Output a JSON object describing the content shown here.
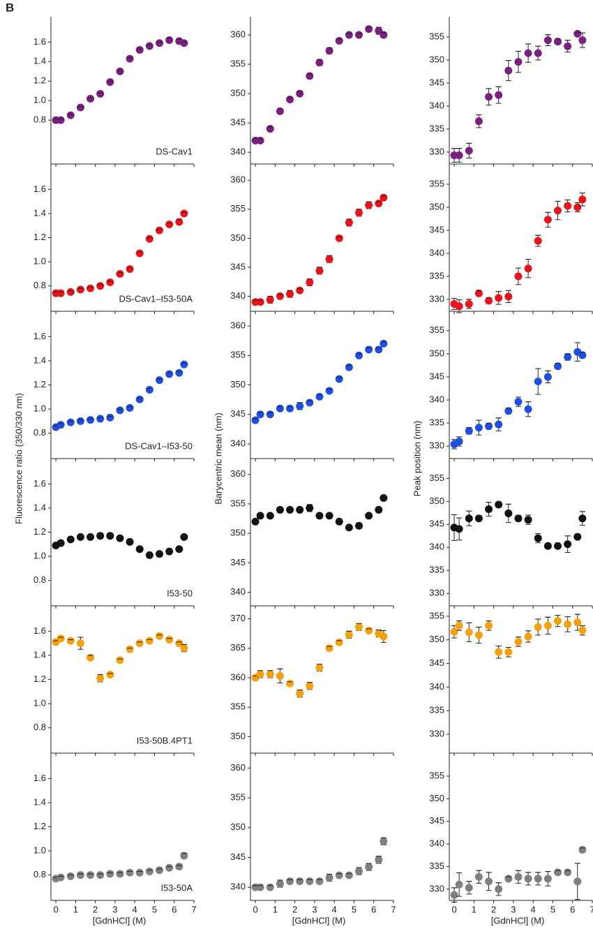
{
  "panel_label": "B",
  "chart_data": [
    {
      "type": "scatter",
      "label": "DS-Cav1",
      "ylabel": "Fluorescence ratio (350/330 nm)",
      "color": "#7b1f80",
      "x": [
        0,
        0.25,
        0.75,
        1.25,
        1.75,
        2.25,
        2.75,
        3.25,
        3.75,
        4.25,
        4.75,
        5.25,
        5.75,
        6.25,
        6.5
      ],
      "values": [
        0.8,
        0.8,
        0.85,
        0.93,
        1.02,
        1.07,
        1.19,
        1.3,
        1.43,
        1.52,
        1.56,
        1.59,
        1.62,
        1.61,
        1.59
      ],
      "errors": [
        0.01,
        0.01,
        0.01,
        0.01,
        0.01,
        0.01,
        0.01,
        0.01,
        0.01,
        0.01,
        0.01,
        0.01,
        0.02,
        0.02,
        0.01
      ],
      "xlim": [
        -0.25,
        7
      ],
      "xticks": [
        0,
        1,
        2,
        3,
        4,
        5,
        6,
        7
      ],
      "ylim": [
        0.35,
        1.86
      ],
      "yticks": [
        0.8,
        {
          "value": 1,
          "label": "1.0"
        },
        1.2,
        1.4,
        1.6
      ]
    },
    {
      "type": "scatter",
      "ylabel": "Barycentric mean (nm)",
      "color": "#7b1f80",
      "x": [
        0,
        0.25,
        0.75,
        1.25,
        1.75,
        2.25,
        2.75,
        3.25,
        3.75,
        4.25,
        4.75,
        5.25,
        5.75,
        6.25,
        6.5
      ],
      "values": [
        342,
        342,
        344,
        347,
        349,
        350,
        353,
        355.3,
        357.3,
        359,
        360,
        360,
        361,
        360.7,
        360
      ],
      "errors": [
        0.3,
        0.3,
        0.3,
        0.3,
        0.3,
        0.3,
        0.3,
        0.5,
        0.5,
        0.3,
        0.3,
        0.3,
        0.3,
        0.6,
        0.4
      ],
      "xlim": [
        -0.25,
        7
      ],
      "xticks": [
        0,
        1,
        2,
        3,
        4,
        5,
        6,
        7
      ],
      "ylim": [
        338,
        363.1
      ],
      "yticks": [
        340,
        345,
        350,
        355,
        360
      ]
    },
    {
      "type": "scatter",
      "ylabel": "Peak position (nm)",
      "color": "#7b1f80",
      "x": [
        0,
        0.25,
        0.75,
        1.25,
        1.75,
        2.25,
        2.75,
        3.25,
        3.75,
        4.25,
        4.75,
        5.25,
        5.75,
        6.25,
        6.5
      ],
      "values": [
        329.3,
        329.3,
        330.3,
        336.7,
        342,
        342.4,
        347.7,
        349.6,
        351.5,
        351.5,
        354.3,
        354,
        353,
        355.7,
        354.3
      ],
      "errors": [
        1.5,
        1.5,
        1.6,
        1.4,
        1.8,
        1.8,
        2.2,
        2.3,
        2,
        1.5,
        1.2,
        0.6,
        1.3,
        0.3,
        1.6
      ],
      "xlim": [
        -0.25,
        7
      ],
      "xticks": [
        0,
        1,
        2,
        3,
        4,
        5,
        6,
        7
      ],
      "ylim": [
        327.4,
        359.4
      ],
      "yticks": [
        330,
        335,
        340,
        345,
        350,
        355
      ]
    },
    {
      "type": "scatter",
      "label": "DS-Cav1–I53-50A",
      "color": "#e8131b",
      "x": [
        0,
        0.25,
        0.75,
        1.25,
        1.75,
        2.25,
        2.75,
        3.25,
        3.75,
        4.25,
        4.75,
        5.25,
        5.75,
        6.25,
        6.5
      ],
      "values": [
        0.74,
        0.74,
        0.75,
        0.77,
        0.78,
        0.8,
        0.83,
        0.9,
        0.94,
        1.07,
        1.19,
        1.26,
        1.31,
        1.33,
        1.4
      ],
      "errors": [
        0.01,
        0.01,
        0.01,
        0.01,
        0.01,
        0.01,
        0.01,
        0.01,
        0.01,
        0.01,
        0.01,
        0.01,
        0.01,
        0.02,
        0.01
      ],
      "xlim": [
        -0.25,
        7
      ],
      "xticks": [
        0,
        1,
        2,
        3,
        4,
        5,
        6,
        7
      ],
      "ylim": [
        0.59,
        1.81
      ],
      "yticks": [
        0.8,
        {
          "value": 1,
          "label": "1.0"
        },
        1.2,
        1.4,
        1.6
      ]
    },
    {
      "type": "scatter",
      "color": "#e8131b",
      "x": [
        0,
        0.25,
        0.75,
        1.25,
        1.75,
        2.25,
        2.75,
        3.25,
        3.75,
        4.25,
        4.75,
        5.25,
        5.75,
        6.25,
        6.5
      ],
      "values": [
        339,
        339,
        339.4,
        340,
        340.4,
        341,
        342.4,
        344.4,
        346.4,
        350,
        352.7,
        354.4,
        355.7,
        356,
        357
      ],
      "errors": [
        0.3,
        0.3,
        0.6,
        0.3,
        0.6,
        0.3,
        0.6,
        0.6,
        0.6,
        0.2,
        0.6,
        0.6,
        0.6,
        0.3,
        0.3
      ],
      "xlim": [
        -0.25,
        7
      ],
      "xticks": [
        0,
        1,
        2,
        3,
        4,
        5,
        6,
        7
      ],
      "ylim": [
        337.4,
        362.8
      ],
      "yticks": [
        340,
        345,
        350,
        355,
        360
      ]
    },
    {
      "type": "scatter",
      "color": "#e8131b",
      "x": [
        0,
        0.25,
        0.75,
        1.25,
        1.75,
        2.25,
        2.75,
        3.25,
        3.75,
        4.25,
        4.75,
        5.25,
        5.75,
        6.25,
        6.5
      ],
      "values": [
        329,
        328.5,
        329,
        331.3,
        329.7,
        330.3,
        330.6,
        335,
        336.7,
        342.7,
        347.3,
        349.3,
        350.3,
        350,
        351.7
      ],
      "errors": [
        1.2,
        1.4,
        1,
        0.6,
        0.6,
        1.4,
        1.3,
        1.8,
        2,
        1.2,
        1.6,
        2,
        1.3,
        1,
        1.4
      ],
      "xlim": [
        -0.25,
        7
      ],
      "xticks": [
        0,
        1,
        2,
        3,
        4,
        5,
        6,
        7
      ],
      "ylim": [
        327.4,
        359.4
      ],
      "yticks": [
        330,
        335,
        340,
        345,
        350,
        355
      ]
    },
    {
      "type": "scatter",
      "label": "DS-Cav1–I53-50",
      "color": "#1f4fe0",
      "x": [
        0,
        0.25,
        0.75,
        1.25,
        1.75,
        2.25,
        2.75,
        3.25,
        3.75,
        4.25,
        4.75,
        5.25,
        5.75,
        6.25,
        6.5
      ],
      "values": [
        0.85,
        0.87,
        0.89,
        0.9,
        0.91,
        0.92,
        0.93,
        0.99,
        1.01,
        1.08,
        1.16,
        1.24,
        1.29,
        1.3,
        1.37
      ],
      "errors": [
        0.01,
        0.01,
        0.01,
        0.01,
        0.01,
        0.01,
        0.01,
        0.01,
        0.01,
        0.01,
        0.01,
        0.01,
        0.01,
        0.01,
        0.01
      ],
      "xlim": [
        -0.25,
        7
      ],
      "xticks": [
        0,
        1,
        2,
        3,
        4,
        5,
        6,
        7
      ],
      "ylim": [
        0.59,
        1.81
      ],
      "yticks": [
        0.8,
        {
          "value": 1,
          "label": "1.0"
        },
        1.2,
        1.4,
        1.6
      ]
    },
    {
      "type": "scatter",
      "color": "#1f4fe0",
      "x": [
        0,
        0.25,
        0.75,
        1.25,
        1.75,
        2.25,
        2.75,
        3.25,
        3.75,
        4.25,
        4.75,
        5.25,
        5.75,
        6.25,
        6.5
      ],
      "values": [
        344,
        345,
        345,
        346,
        346,
        346.4,
        347,
        348,
        349,
        351,
        353,
        355,
        356,
        356,
        357
      ],
      "errors": [
        0.3,
        0.3,
        0.3,
        0.3,
        0.3,
        0.6,
        0.3,
        0.3,
        0.3,
        0.3,
        0.3,
        0.3,
        0.3,
        0.3,
        0.3
      ],
      "xlim": [
        -0.25,
        7
      ],
      "xticks": [
        0,
        1,
        2,
        3,
        4,
        5,
        6,
        7
      ],
      "ylim": [
        337.5,
        362.5
      ],
      "yticks": [
        340,
        345,
        350,
        355,
        360
      ]
    },
    {
      "type": "scatter",
      "color": "#1f4fe0",
      "x": [
        0,
        0.25,
        0.75,
        1.25,
        1.75,
        2.25,
        2.75,
        3.25,
        3.75,
        4.25,
        4.75,
        5.25,
        5.75,
        6.25,
        6.5
      ],
      "values": [
        330.4,
        331,
        333.3,
        334,
        334.3,
        334.7,
        337.6,
        339.6,
        338,
        344,
        345,
        347.3,
        349.3,
        350.4,
        349.7
      ],
      "errors": [
        1,
        1,
        0.7,
        1.6,
        0.6,
        1.4,
        0.6,
        1,
        1.6,
        2.8,
        1.3,
        0.6,
        0.7,
        2,
        0.6
      ],
      "xlim": [
        -0.25,
        7
      ],
      "xticks": [
        0,
        1,
        2,
        3,
        4,
        5,
        6,
        7
      ],
      "ylim": [
        327.3,
        359.2
      ],
      "yticks": [
        330,
        335,
        340,
        345,
        350,
        355
      ]
    },
    {
      "type": "scatter",
      "label": "I53-50",
      "color": "#111111",
      "x": [
        0,
        0.25,
        0.75,
        1.25,
        1.75,
        2.25,
        2.75,
        3.25,
        3.75,
        4.25,
        4.75,
        5.25,
        5.75,
        6.25,
        6.5
      ],
      "values": [
        1.09,
        1.11,
        1.14,
        1.16,
        1.16,
        1.17,
        1.17,
        1.15,
        1.12,
        1.06,
        1.01,
        1.02,
        1.04,
        1.06,
        1.16
      ],
      "errors": [
        0.01,
        0.01,
        0.01,
        0.01,
        0.01,
        0.01,
        0.01,
        0.01,
        0.01,
        0.01,
        0.01,
        0.01,
        0.01,
        0.01,
        0.01
      ],
      "xlim": [
        -0.25,
        7
      ],
      "xticks": [
        0,
        1,
        2,
        3,
        4,
        5,
        6,
        7
      ],
      "ylim": [
        0.59,
        1.81
      ],
      "yticks": [
        0.8,
        {
          "value": 1,
          "label": "1.0"
        },
        1.2,
        1.4,
        1.6
      ]
    },
    {
      "type": "scatter",
      "color": "#111111",
      "x": [
        0,
        0.25,
        0.75,
        1.25,
        1.75,
        2.25,
        2.75,
        3.25,
        3.75,
        4.25,
        4.75,
        5.25,
        5.75,
        6.25,
        6.5
      ],
      "values": [
        352,
        353,
        353,
        354,
        354,
        354,
        354.3,
        353,
        353,
        352,
        351,
        351.3,
        353,
        354,
        356
      ],
      "errors": [
        0.3,
        0.3,
        0.3,
        0.3,
        0.3,
        0.3,
        0.6,
        0.3,
        0.3,
        0.3,
        0.3,
        0.5,
        0.3,
        0.3,
        0.3
      ],
      "xlim": [
        -0.25,
        7
      ],
      "xticks": [
        0,
        1,
        2,
        3,
        4,
        5,
        6,
        7
      ],
      "ylim": [
        337.7,
        362.7
      ],
      "yticks": [
        340,
        345,
        350,
        355,
        360
      ]
    },
    {
      "type": "scatter",
      "color": "#111111",
      "x": [
        0,
        0.25,
        0.75,
        1.25,
        1.75,
        2.25,
        2.75,
        3.25,
        3.75,
        4.25,
        4.75,
        5.25,
        5.75,
        6.25,
        6.5
      ],
      "values": [
        344.3,
        344,
        346.3,
        346.3,
        348.3,
        349.3,
        347.4,
        346.3,
        346,
        342,
        340.3,
        340.3,
        340.7,
        342.3,
        346.3
      ],
      "errors": [
        2.8,
        2.4,
        1.6,
        0.6,
        1.5,
        0.6,
        2,
        0.6,
        1,
        1,
        0.3,
        0.3,
        1.8,
        0.6,
        1.5
      ],
      "xlim": [
        -0.25,
        7
      ],
      "xticks": [
        0,
        1,
        2,
        3,
        4,
        5,
        6,
        7
      ],
      "ylim": [
        327.3,
        359.3
      ],
      "yticks": [
        330,
        335,
        340,
        345,
        350,
        355
      ]
    },
    {
      "type": "scatter",
      "label": "I53-50B.4PT1",
      "color": "#f5a10e",
      "x": [
        0,
        0.25,
        0.75,
        1.25,
        1.75,
        2.25,
        2.75,
        3.25,
        3.75,
        4.25,
        4.75,
        5.25,
        5.75,
        6.25,
        6.5
      ],
      "values": [
        1.51,
        1.54,
        1.52,
        1.5,
        1.38,
        1.21,
        1.24,
        1.36,
        1.45,
        1.5,
        1.52,
        1.56,
        1.53,
        1.5,
        1.46
      ],
      "errors": [
        0.01,
        0.01,
        0.01,
        0.05,
        0.02,
        0.03,
        0.01,
        0.01,
        0.01,
        0.01,
        0.01,
        0.01,
        0.01,
        0.01,
        0.03
      ],
      "xlim": [
        -0.25,
        7
      ],
      "xticks": [
        0,
        1,
        2,
        3,
        4,
        5,
        6,
        7
      ],
      "ylim": [
        0.59,
        1.81
      ],
      "yticks": [
        0.8,
        {
          "value": 1,
          "label": "1.0"
        },
        1.2,
        1.4,
        1.6
      ]
    },
    {
      "type": "scatter",
      "color": "#f5a10e",
      "x": [
        0,
        0.25,
        0.75,
        1.25,
        1.75,
        2.25,
        2.75,
        3.25,
        3.75,
        4.25,
        4.75,
        5.25,
        5.75,
        6.25,
        6.5
      ],
      "values": [
        360,
        360.6,
        360.6,
        360.3,
        359,
        357.3,
        358.6,
        361.7,
        365,
        366,
        367.3,
        368.6,
        368,
        367.5,
        367
      ],
      "errors": [
        0.3,
        0.6,
        0.6,
        1.2,
        0.3,
        0.6,
        0.6,
        0.6,
        0.3,
        0.3,
        0.6,
        0.6,
        0.3,
        0.6,
        1
      ],
      "xlim": [
        -0.25,
        7
      ],
      "xticks": [
        0,
        1,
        2,
        3,
        4,
        5,
        6,
        7
      ],
      "ylim": [
        347.2,
        372.2
      ],
      "yticks": [
        350,
        355,
        360,
        365,
        370
      ]
    },
    {
      "type": "scatter",
      "color": "#f5a10e",
      "x": [
        0,
        0.25,
        0.75,
        1.25,
        1.75,
        2.25,
        2.75,
        3.25,
        3.75,
        4.25,
        4.75,
        5.25,
        5.75,
        6.25,
        6.5
      ],
      "values": [
        351.7,
        353,
        351.6,
        351,
        353,
        347.4,
        347.4,
        349.6,
        350.7,
        352.7,
        353,
        354,
        353.3,
        353.7,
        352
      ],
      "errors": [
        1.3,
        1,
        2,
        1.7,
        1,
        1.3,
        1,
        1,
        1.2,
        1.7,
        1.8,
        1.2,
        1.6,
        1.7,
        1
      ],
      "xlim": [
        -0.25,
        7
      ],
      "xticks": [
        0,
        1,
        2,
        3,
        4,
        5,
        6,
        7
      ],
      "ylim": [
        326,
        357.2
      ],
      "yticks": [
        330,
        335,
        340,
        345,
        350,
        355
      ]
    },
    {
      "type": "scatter",
      "label": "I53-50A",
      "xlabel": "[GdnHCl] (M)",
      "color": "#808080",
      "x": [
        0,
        0.25,
        0.75,
        1.25,
        1.75,
        2.25,
        2.75,
        3.25,
        3.75,
        4.25,
        4.75,
        5.25,
        5.75,
        6.25,
        6.5
      ],
      "values": [
        0.77,
        0.78,
        0.79,
        0.8,
        0.8,
        0.8,
        0.81,
        0.81,
        0.82,
        0.82,
        0.83,
        0.84,
        0.86,
        0.87,
        0.96
      ],
      "errors": [
        0.01,
        0.01,
        0.01,
        0.01,
        0.01,
        0.01,
        0.01,
        0.01,
        0.01,
        0.01,
        0.01,
        0.01,
        0.01,
        0.01,
        0.02
      ],
      "xlim": [
        -0.25,
        7
      ],
      "xticks": [
        0,
        1,
        2,
        3,
        4,
        5,
        6,
        7
      ],
      "ylim": [
        0.59,
        1.81
      ],
      "yticks": [
        0.8,
        {
          "value": 1,
          "label": "1.0"
        },
        1.2,
        1.4,
        1.6
      ]
    },
    {
      "type": "scatter",
      "xlabel": "[GdnHCl] (M)",
      "color": "#808080",
      "x": [
        0,
        0.25,
        0.75,
        1.25,
        1.75,
        2.25,
        2.75,
        3.25,
        3.75,
        4.25,
        4.75,
        5.25,
        5.75,
        6.25,
        6.5
      ],
      "values": [
        340,
        340,
        340,
        340.6,
        341,
        341,
        341,
        341,
        341.6,
        342,
        342,
        342.7,
        343.4,
        344.6,
        347.7
      ],
      "errors": [
        0.3,
        0.3,
        0.3,
        0.6,
        0.3,
        0.3,
        0.3,
        0.3,
        0.6,
        0.3,
        0.3,
        0.6,
        0.6,
        0.6,
        0.6
      ],
      "xlim": [
        -0.25,
        7
      ],
      "xticks": [
        0,
        1,
        2,
        3,
        4,
        5,
        6,
        7
      ],
      "ylim": [
        337.8,
        362.5
      ],
      "yticks": [
        340,
        345,
        350,
        355,
        360
      ]
    },
    {
      "type": "scatter",
      "xlabel": "[GdnHCl] (M)",
      "color": "#808080",
      "x": [
        0,
        0.25,
        0.75,
        1.25,
        1.75,
        2.25,
        2.75,
        3.25,
        3.75,
        4.25,
        4.75,
        5.25,
        5.75,
        6.25,
        6.5
      ],
      "values": [
        328.7,
        331,
        330.3,
        332.7,
        331.7,
        330,
        332.3,
        332.7,
        332.3,
        332.3,
        332.3,
        333.7,
        333.7,
        331.7,
        338.7
      ],
      "errors": [
        1.6,
        2.6,
        1.4,
        1.4,
        2,
        1.4,
        0.4,
        1.4,
        1.4,
        1.4,
        1.6,
        0.4,
        0.4,
        4,
        0.4
      ],
      "xlim": [
        -0.25,
        7
      ],
      "xticks": [
        0,
        1,
        2,
        3,
        4,
        5,
        6,
        7
      ],
      "ylim": [
        327.5,
        360.1
      ],
      "yticks": [
        330,
        335,
        340,
        345,
        350,
        355
      ]
    }
  ]
}
